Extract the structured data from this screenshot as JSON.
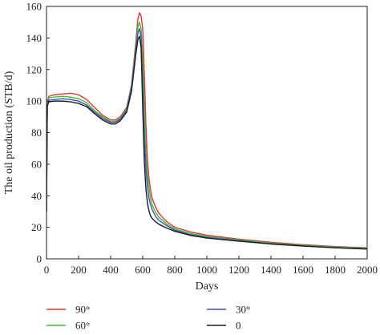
{
  "chart_data": {
    "type": "line",
    "title": "",
    "xlabel": "Days",
    "ylabel": "The oil production (STB/d)",
    "xlim": [
      0,
      2000
    ],
    "ylim": [
      0,
      160
    ],
    "xticks": [
      0,
      200,
      400,
      600,
      800,
      1000,
      1200,
      1400,
      1600,
      1800,
      2000
    ],
    "yticks": [
      0,
      20,
      40,
      60,
      80,
      100,
      120,
      140,
      160
    ],
    "grid": false,
    "legend_position": "bottom",
    "series": [
      {
        "name": "90°",
        "color": "#e8322e",
        "x": [
          0,
          5,
          15,
          50,
          100,
          150,
          200,
          250,
          300,
          350,
          400,
          430,
          460,
          500,
          530,
          555,
          570,
          580,
          590,
          600,
          610,
          620,
          630,
          640,
          650,
          660,
          680,
          700,
          750,
          800,
          900,
          1000,
          1200,
          1400,
          1600,
          1800,
          2000
        ],
        "values": [
          30,
          100,
          103,
          104,
          104.5,
          105,
          104,
          101,
          96,
          91,
          88,
          88,
          90,
          96,
          110,
          135,
          152,
          156,
          154,
          146,
          118,
          85,
          62,
          50,
          43,
          38,
          33,
          29,
          23.5,
          20,
          17,
          15,
          12.5,
          10.5,
          9,
          7.8,
          7
        ]
      },
      {
        "name": "60°",
        "color": "#35c42e",
        "x": [
          0,
          5,
          15,
          50,
          100,
          150,
          200,
          250,
          300,
          350,
          400,
          430,
          460,
          500,
          530,
          555,
          570,
          580,
          590,
          600,
          610,
          620,
          630,
          640,
          650,
          660,
          680,
          700,
          750,
          800,
          900,
          1000,
          1200,
          1400,
          1600,
          1800,
          2000
        ],
        "values": [
          30,
          99,
          102,
          102.5,
          103,
          102.5,
          101.5,
          99,
          94,
          90,
          87,
          87,
          89,
          95,
          109,
          132,
          147,
          150,
          146,
          128,
          95,
          68,
          52,
          44,
          38,
          34,
          29.5,
          26.5,
          22,
          19,
          16,
          14.2,
          12,
          10,
          8.6,
          7.5,
          6.7
        ]
      },
      {
        "name": "30°",
        "color": "#3f52c6",
        "x": [
          0,
          5,
          15,
          50,
          100,
          150,
          200,
          250,
          300,
          350,
          400,
          430,
          460,
          500,
          530,
          555,
          570,
          580,
          590,
          600,
          610,
          620,
          630,
          640,
          650,
          660,
          680,
          700,
          750,
          800,
          900,
          1000,
          1200,
          1400,
          1600,
          1800,
          2000
        ],
        "values": [
          30,
          98,
          100.5,
          101,
          101.5,
          101,
          100,
          97.5,
          93,
          89,
          86.5,
          86.5,
          88.5,
          94,
          108,
          130,
          143,
          146,
          140,
          112,
          78,
          57,
          45,
          38,
          34,
          31,
          27,
          24.5,
          21,
          18.2,
          15.3,
          13.6,
          11.5,
          9.6,
          8.3,
          7.2,
          6.4
        ]
      },
      {
        "name": "0",
        "color": "#1e1e1e",
        "x": [
          0,
          5,
          15,
          50,
          100,
          150,
          200,
          250,
          300,
          350,
          400,
          430,
          460,
          500,
          530,
          555,
          570,
          580,
          590,
          600,
          610,
          620,
          630,
          640,
          650,
          660,
          680,
          700,
          750,
          800,
          900,
          1000,
          1200,
          1400,
          1600,
          1800,
          2000
        ],
        "values": [
          30,
          97,
          99.5,
          100,
          100,
          99.5,
          98.5,
          96.5,
          92,
          88,
          85.5,
          85.5,
          87.5,
          93,
          106,
          128,
          139,
          141,
          134,
          96,
          62,
          44,
          35,
          30,
          27,
          25.5,
          23.5,
          22,
          19.5,
          17.5,
          14.8,
          13.2,
          11.2,
          9.4,
          8.1,
          7,
          6.2
        ]
      }
    ]
  }
}
